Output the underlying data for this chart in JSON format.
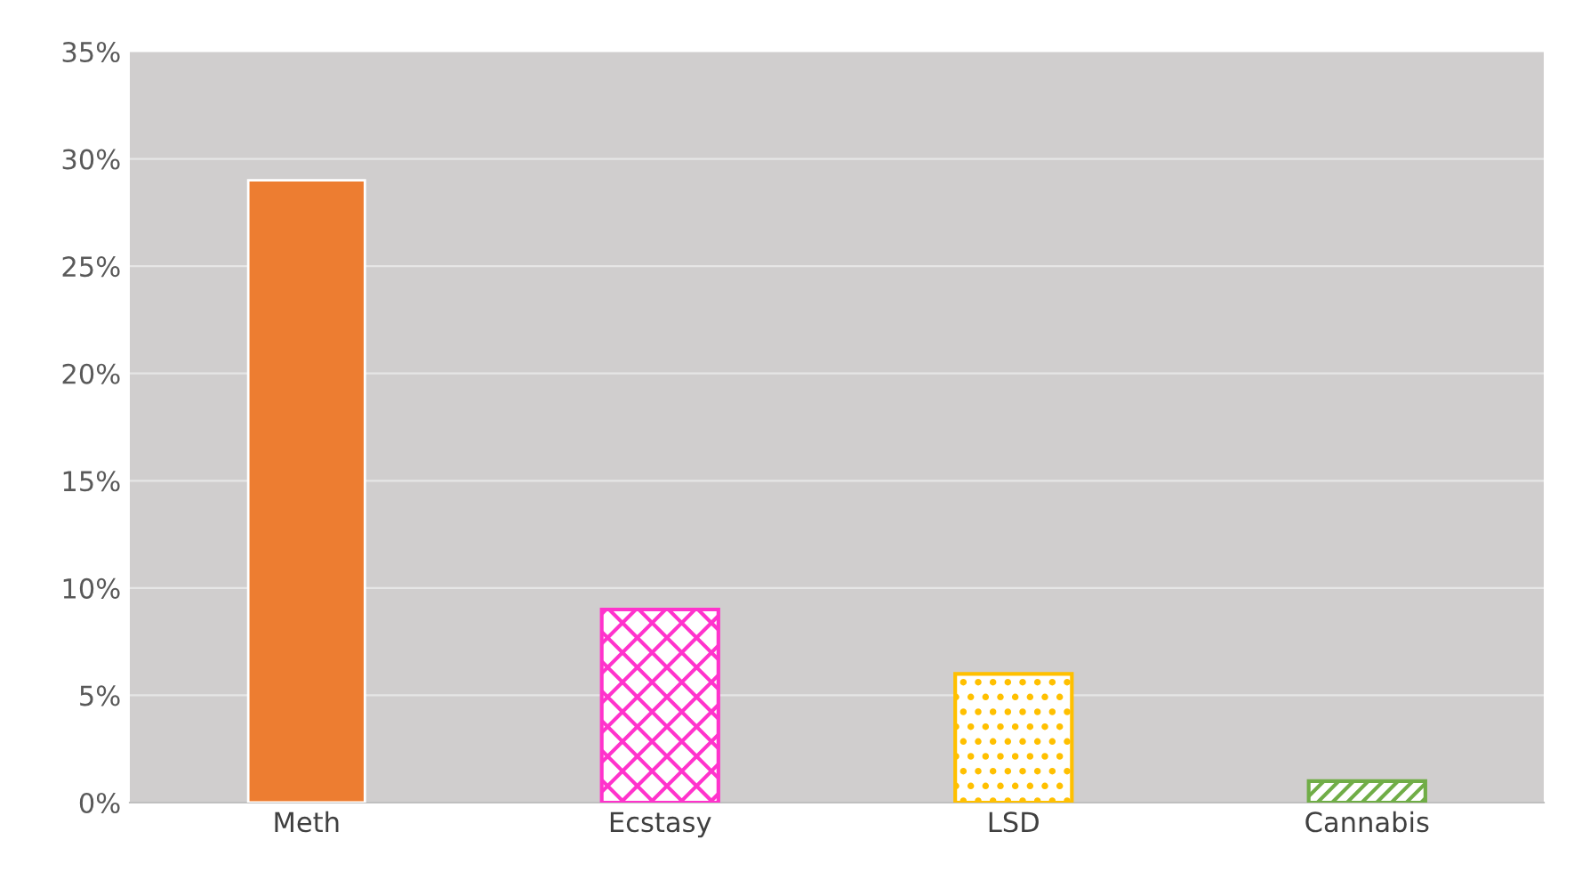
{
  "chart_data": {
    "type": "bar",
    "categories": [
      "Meth",
      "Ecstasy",
      "LSD",
      "Cannabis"
    ],
    "values": [
      29,
      9,
      6,
      1
    ],
    "colors": [
      "#ed7d31",
      "#ff33cc",
      "#ffc000",
      "#70ad47"
    ],
    "ylim": [
      0,
      35
    ],
    "yticks": [
      {
        "value": 0,
        "label": "0%"
      },
      {
        "value": 5,
        "label": "5%"
      },
      {
        "value": 10,
        "label": "10%"
      },
      {
        "value": 15,
        "label": "15%"
      },
      {
        "value": 20,
        "label": "20%"
      },
      {
        "value": 25,
        "label": "25%"
      },
      {
        "value": 30,
        "label": "30%"
      },
      {
        "value": 35,
        "label": "35%"
      }
    ],
    "grid": "y"
  }
}
